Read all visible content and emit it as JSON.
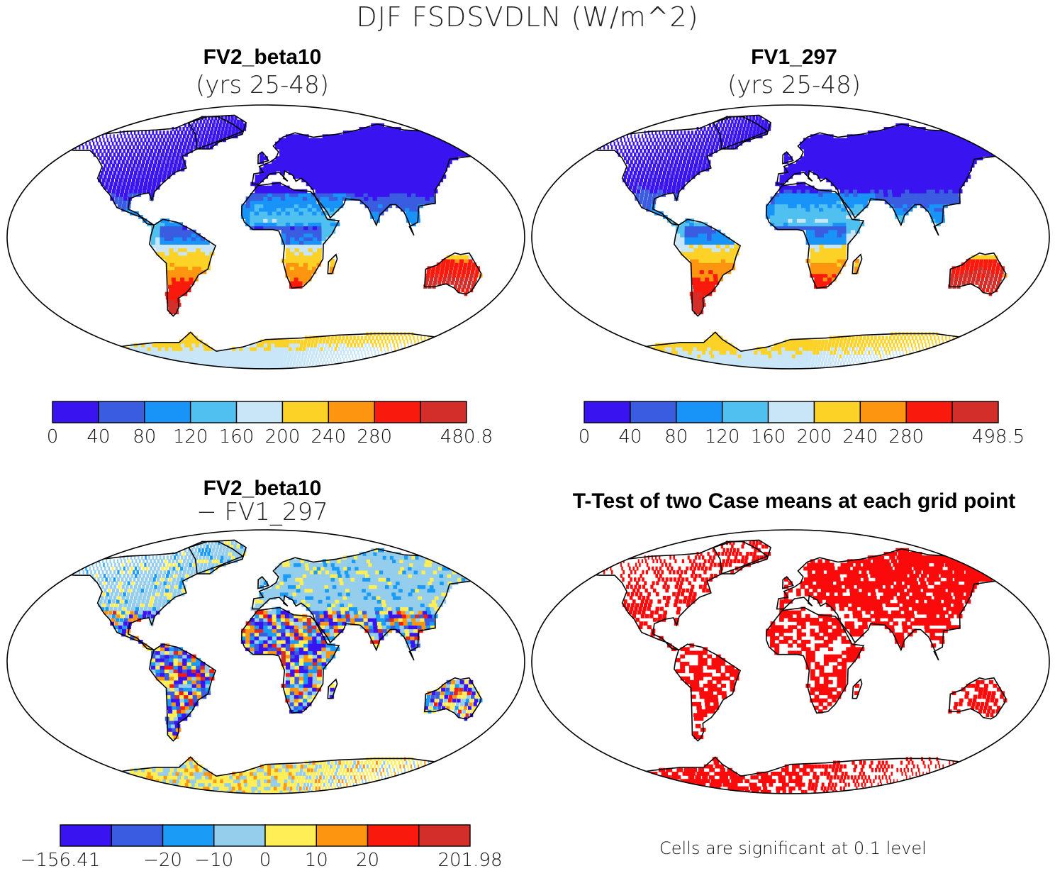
{
  "title": "DJF FSDSVDLN (W/m^2)",
  "panels": [
    {
      "title": "FV2_beta10",
      "subtitle": "(yrs 25-48)"
    },
    {
      "title": "FV1_297",
      "subtitle": "(yrs 25-48)"
    },
    {
      "title": "FV2_beta10",
      "subtitle": "− FV1_297"
    },
    {
      "title": "T-Test of two Case means at each grid point",
      "subtitle": ""
    }
  ],
  "colorbars": [
    {
      "colors": [
        "#3a14f0",
        "#3a5ce0",
        "#1893f7",
        "#4fc0ef",
        "#c8e6f7",
        "#fdd226",
        "#fd9511",
        "#fa1a0d",
        "#d42e2a"
      ],
      "labels": [
        "0",
        "40",
        "80",
        "120",
        "160",
        "200",
        "240",
        "280",
        "480.8"
      ]
    },
    {
      "colors": [
        "#3a14f0",
        "#3a5ce0",
        "#1893f7",
        "#4fc0ef",
        "#c8e6f7",
        "#fdd226",
        "#fd9511",
        "#fa1a0d",
        "#d42e2a"
      ],
      "labels": [
        "0",
        "40",
        "80",
        "120",
        "160",
        "200",
        "240",
        "280",
        "498.5"
      ]
    },
    {
      "colors": [
        "#3a14f0",
        "#3a5ce0",
        "#1a9bf5",
        "#95cdec",
        "#ffee55",
        "#fd9511",
        "#fa1a0d",
        "#d42e2a"
      ],
      "labels": [
        "−156.41",
        "−20",
        "−10",
        "0",
        "10",
        "20",
        "201.98"
      ]
    }
  ],
  "footnote": "Cells are significant at 0.1 level",
  "colors": {
    "land_outline": "#000000",
    "significant": "#fa0a0a"
  }
}
